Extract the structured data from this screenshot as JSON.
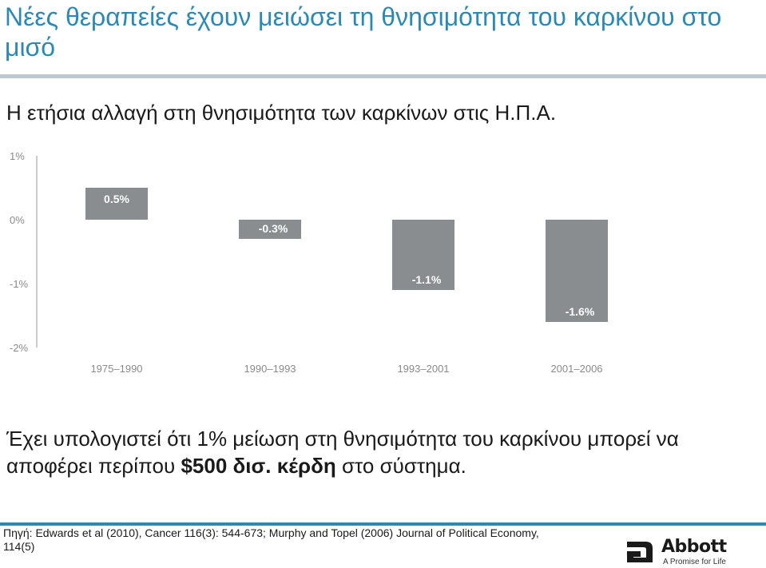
{
  "slide": {
    "title": "Νέες θεραπείες έχουν μειώσει τη θνησιμότητα του καρκίνου στο μισό",
    "subtitle": "Η ετήσια αλλαγή στη θνησιμότητα των καρκίνων στις Η.Π.Α.",
    "note_part1": "Έχει υπολογιστεί ότι 1% μείωση στη θνησιμότητα του καρκίνου μπορεί να αποφέρει περίπου ",
    "note_bold": "$500 δισ. κέρδη",
    "note_part2": " στο σύστημα.",
    "source": "Πηγή: Edwards et al (2010), Cancer 116(3): 544-673; Murphy and Topel (2006) Journal of Political Economy, 114(5)",
    "accent_color": "#2a8ab5"
  },
  "logo": {
    "name": "Abbott",
    "tagline": "A Promise for Life"
  },
  "chart_data": {
    "type": "bar",
    "categories": [
      "1975–1990",
      "1990–1993",
      "1993–2001",
      "2001–2006"
    ],
    "values": [
      0.5,
      -0.3,
      -1.1,
      -1.6
    ],
    "data_labels": [
      "0.5%",
      "-0.3%",
      "-1.1%",
      "-1.6%"
    ],
    "ylim": [
      -2,
      1
    ],
    "yticks": [
      1,
      0,
      -1,
      -2
    ],
    "ytick_labels": [
      "1%",
      "0%",
      "-1%",
      "-2%"
    ],
    "bar_color": "#8a8d90",
    "label_color": "#ffffff",
    "grid": false
  }
}
